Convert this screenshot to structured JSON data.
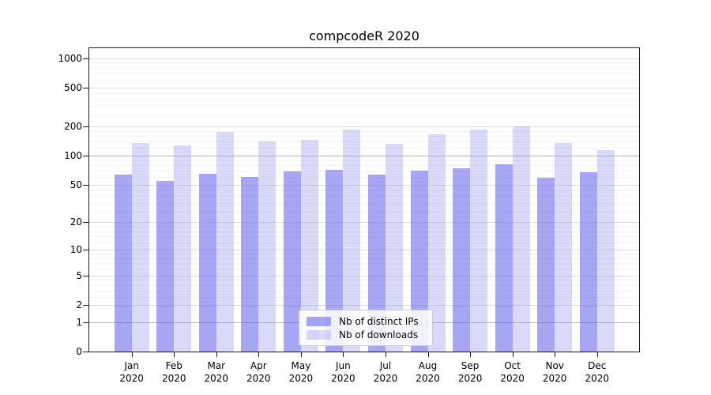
{
  "chart_data": {
    "type": "bar",
    "title": "compcodeR 2020",
    "categories": [
      "Jan 2020",
      "Feb 2020",
      "Mar 2020",
      "Apr 2020",
      "May 2020",
      "Jun 2020",
      "Jul 2020",
      "Aug 2020",
      "Sep 2020",
      "Oct 2020",
      "Nov 2020",
      "Dec 2020"
    ],
    "series": [
      {
        "name": "Nb of distinct IPs",
        "color": "rgba(102,102,236,0.58)",
        "values": [
          64,
          55,
          65,
          60,
          69,
          71,
          64,
          70,
          74,
          82,
          59,
          67
        ]
      },
      {
        "name": "Nb of downloads",
        "color": "rgba(136,136,239,0.32)",
        "values": [
          134,
          128,
          177,
          139,
          145,
          184,
          133,
          165,
          186,
          199,
          135,
          115
        ]
      }
    ],
    "xlabel": "",
    "ylabel": "",
    "y_ticks": [
      0,
      1,
      2,
      5,
      10,
      20,
      50,
      100,
      200,
      500,
      1000
    ],
    "scale": "log1p",
    "ylim": [
      0,
      1265
    ],
    "grid": true,
    "legend_position": "inside-bottom-center"
  },
  "colors": {
    "grid_minor": "#f2f2f2",
    "grid_major": "#dcdcdc",
    "grid_emphasis": "#b5b5b5",
    "axis": "#1a1a1a"
  }
}
